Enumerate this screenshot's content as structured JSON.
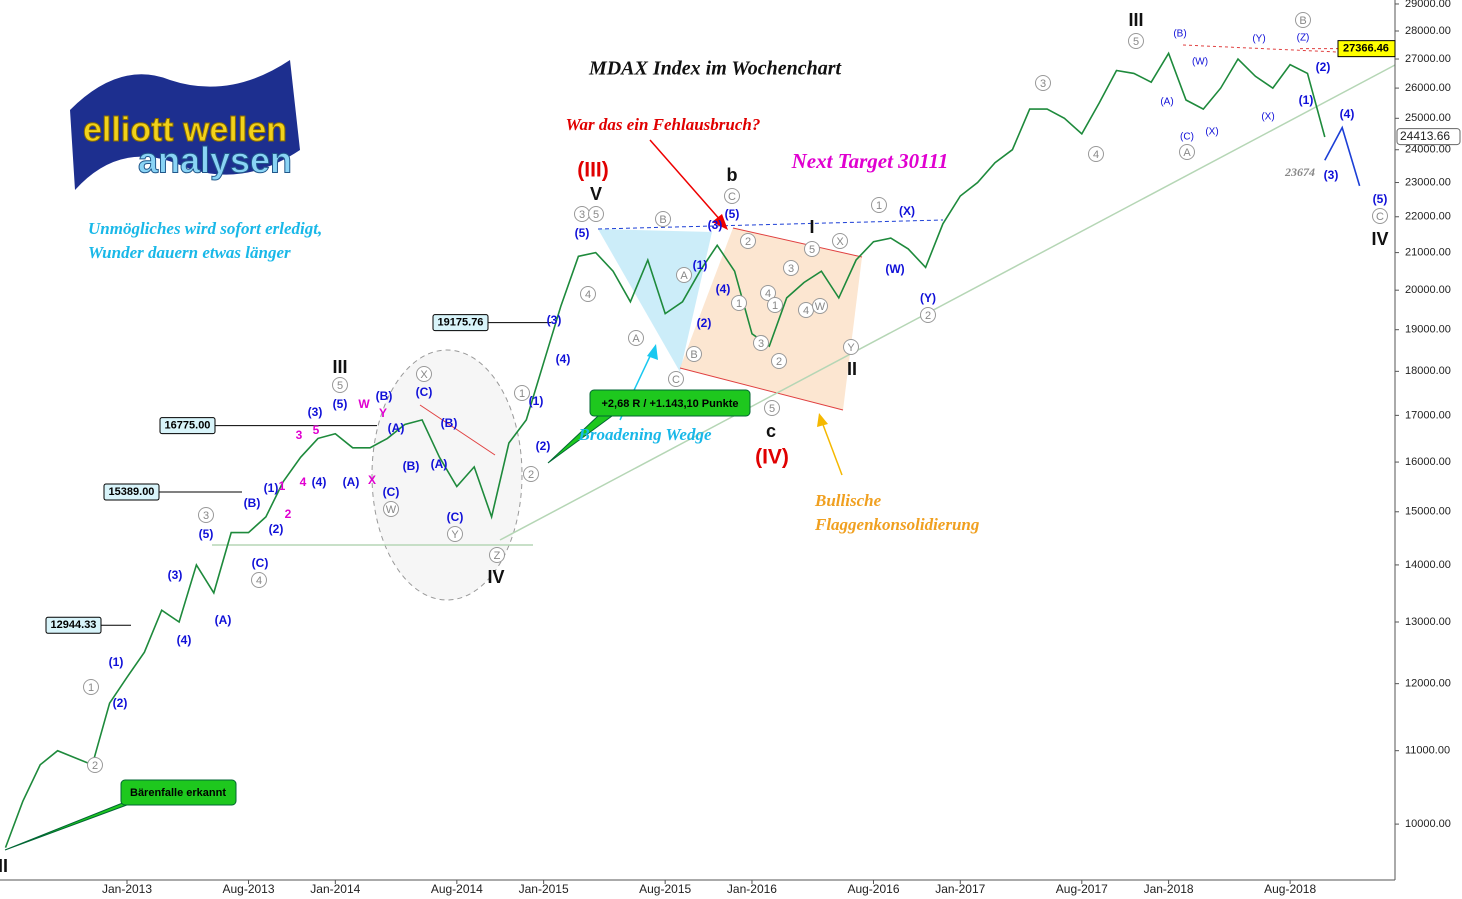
{
  "chart_data": {
    "type": "line",
    "title": "MDAX Index im Wochenchart",
    "log_scale": true,
    "grid": false,
    "categories": [
      null,
      null,
      null,
      null,
      null,
      null,
      null,
      "Jan-2013",
      null,
      null,
      null,
      null,
      null,
      null,
      "Aug-2013",
      null,
      null,
      null,
      null,
      "Jan-2014",
      null,
      null,
      null,
      null,
      null,
      null,
      "Aug-2014",
      null,
      null,
      null,
      null,
      "Jan-2015",
      null,
      null,
      null,
      null,
      null,
      null,
      "Aug-2015",
      null,
      null,
      null,
      null,
      "Jan-2016",
      null,
      null,
      null,
      null,
      null,
      null,
      "Aug-2016",
      null,
      null,
      null,
      null,
      "Jan-2017",
      null,
      null,
      null,
      null,
      null,
      null,
      "Aug-2017",
      null,
      null,
      null,
      null,
      "Jan-2018",
      null,
      null,
      null,
      null,
      null,
      null,
      "Aug-2018",
      null,
      null,
      null,
      null,
      null,
      null
    ],
    "series": [
      {
        "color": "#1e8a3c",
        "values": [
          9700,
          10300,
          10800,
          11000,
          10900,
          10800,
          11700,
          12100,
          12500,
          13200,
          13000,
          14000,
          13500,
          14600,
          14600,
          14900,
          15600,
          16100,
          16500,
          16600,
          16300,
          16300,
          16500,
          16800,
          16900,
          16100,
          15500,
          15900,
          14900,
          16400,
          16900,
          18200,
          19600,
          20900,
          21000,
          20500,
          19700,
          20800,
          19400,
          19700,
          20500,
          21200,
          20500,
          18900,
          18600,
          19800,
          20200,
          20500,
          19800,
          20800,
          21300,
          21400,
          21100,
          20600,
          21800,
          22600,
          23000,
          23600,
          24000,
          25300,
          25300,
          25000,
          24500,
          25500,
          26600,
          26500,
          26200,
          27200,
          25600,
          25300,
          26000,
          27000,
          26400,
          26000,
          26800,
          26500,
          24400,
          null,
          null,
          null,
          null
        ]
      },
      {
        "color": "#1c3fd6",
        "values": [
          null,
          null,
          null,
          null,
          null,
          null,
          null,
          null,
          null,
          null,
          null,
          null,
          null,
          null,
          null,
          null,
          null,
          null,
          null,
          null,
          null,
          null,
          null,
          null,
          null,
          null,
          null,
          null,
          null,
          null,
          null,
          null,
          null,
          null,
          null,
          null,
          null,
          null,
          null,
          null,
          null,
          null,
          null,
          null,
          null,
          null,
          null,
          null,
          null,
          null,
          null,
          null,
          null,
          null,
          null,
          null,
          null,
          null,
          null,
          null,
          null,
          null,
          null,
          null,
          null,
          null,
          null,
          null,
          null,
          null,
          null,
          null,
          null,
          null,
          null,
          null,
          23674,
          24700,
          22900,
          null,
          null
        ]
      }
    ],
    "ylim": [
      9300,
      29150
    ],
    "yticks": [
      {
        "value": 10000,
        "label": "10000.00"
      },
      {
        "value": 11000,
        "label": "11000.00"
      },
      {
        "value": 12000,
        "label": "12000.00"
      },
      {
        "value": 13000,
        "label": "13000.00"
      },
      {
        "value": 14000,
        "label": "14000.00"
      },
      {
        "value": 15000,
        "label": "15000.00"
      },
      {
        "value": 16000,
        "label": "16000.00"
      },
      {
        "value": 17000,
        "label": "17000.00"
      },
      {
        "value": 18000,
        "label": "18000.00"
      },
      {
        "value": 19000,
        "label": "19000.00"
      },
      {
        "value": 20000,
        "label": "20000.00"
      },
      {
        "value": 21000,
        "label": "21000.00"
      },
      {
        "value": 22000,
        "label": "22000.00"
      },
      {
        "value": 23000,
        "label": "23000.00"
      },
      {
        "value": 24000,
        "label": "24000.00"
      },
      {
        "value": 25000,
        "label": "25000.00"
      },
      {
        "value": 26000,
        "label": "26000.00"
      },
      {
        "value": 27000,
        "label": "27000.00"
      },
      {
        "value": 28000,
        "label": "28000.00"
      },
      {
        "value": 29000,
        "label": "29000.00"
      }
    ],
    "levels": [
      19175.76,
      {
        "value": 16775,
        "label": "16775.00"
      },
      {
        "value": 15389,
        "label": "15389.00"
      },
      12944.33
    ],
    "target_level": 27366.46,
    "last_price": 24413.66,
    "annotations": [
      "War das ein Fehlausbruch?",
      "Next Target 30111",
      "Unmögliches wird sofort erledigt,",
      "Wunder dauern etwas länger",
      "Broadening Wedge",
      "Bullische",
      "Flaggenkonsolidierung",
      "23674"
    ],
    "callouts": [
      "+2,68 R / +1.143,10 Punkte",
      "Bärenfalle erkannt"
    ],
    "logo": [
      "elliott wellen",
      "analysen"
    ],
    "wave_labels": {
      "black": [
        "II",
        "III",
        "IV",
        "V",
        "b",
        "c",
        "II",
        "I",
        "III",
        "IV"
      ],
      "red": [
        "(III)",
        "(IV)"
      ],
      "blue": [
        "(1)",
        "(2)",
        "(3)",
        "(4)",
        "(5)",
        "(A)",
        "(B)",
        "(C)",
        "(1)",
        "(2)",
        "(3)",
        "(4)",
        "(5)",
        "(A)",
        "(B)",
        "(A)",
        "(B)",
        "(C)",
        "(C)",
        "(B)",
        "(A)",
        "(C)",
        "(1)",
        "(2)",
        "(3)",
        "(4)",
        "(5)",
        "(1)",
        "(2)",
        "(3)",
        "(4)",
        "(5)",
        "(X)",
        "(W)",
        "(Y)",
        "(2)",
        "(1)",
        "(4)",
        "(3)",
        "(5)"
      ],
      "blue_small": [
        "(A)",
        "(B)",
        "(W)",
        "(C)",
        "(X)",
        "(Y)",
        "(X)",
        "(Z)"
      ],
      "magenta": [
        "1",
        "2",
        "3",
        "4",
        "5",
        "W",
        "Y",
        "X"
      ],
      "circled": [
        "1",
        "2",
        "3",
        "4",
        "5",
        "X",
        "W",
        "Y",
        "Z",
        "1",
        "2",
        "3",
        "5",
        "4",
        "B",
        "A",
        "A",
        "C",
        "B",
        "C",
        "2",
        "1",
        "3",
        "4",
        "5",
        "2",
        "1",
        "3",
        "4",
        "5",
        "X",
        "W",
        "Y",
        "1",
        "2",
        "3",
        "4",
        "5",
        "C",
        "A",
        "B"
      ]
    }
  }
}
